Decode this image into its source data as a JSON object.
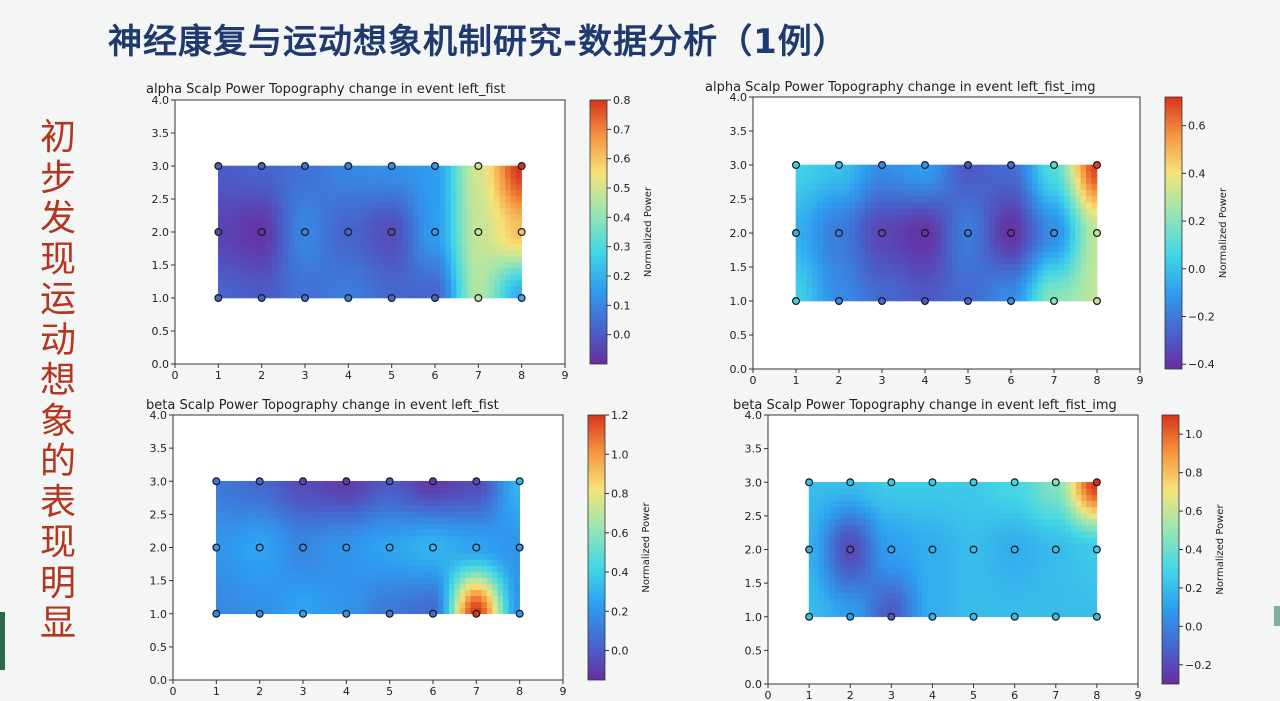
{
  "slide": {
    "title": "神经康复与运动想象机制研究-数据分析（1例）",
    "side_text": [
      "初",
      "步",
      "发",
      "现",
      "运",
      "动",
      "想",
      "象",
      "的",
      "表",
      "现",
      "明",
      "显"
    ]
  },
  "chart_data": [
    {
      "type": "heatmap",
      "title": "alpha Scalp Power Topography change in event left_fist",
      "xlim": [
        0,
        9
      ],
      "ylim": [
        0,
        4
      ],
      "xticks": [
        0,
        1,
        2,
        3,
        4,
        5,
        6,
        7,
        8,
        9
      ],
      "yticks": [
        0.0,
        0.5,
        1.0,
        1.5,
        2.0,
        2.5,
        3.0,
        3.5,
        4.0
      ],
      "electrodes_x": [
        1,
        2,
        3,
        4,
        5,
        6,
        7,
        8
      ],
      "electrodes_y": [
        1,
        2,
        3
      ],
      "values": [
        [
          0.02,
          0.0,
          0.05,
          0.08,
          0.03,
          0.02,
          0.45,
          0.18
        ],
        [
          -0.05,
          -0.08,
          0.1,
          0.02,
          -0.03,
          0.15,
          0.48,
          0.6
        ],
        [
          0.0,
          0.02,
          0.05,
          0.1,
          0.12,
          0.15,
          0.5,
          0.8
        ]
      ],
      "colorbar": {
        "label": "Normalized Power",
        "min": -0.1,
        "max": 0.8,
        "ticks": [
          0.0,
          0.1,
          0.2,
          0.3,
          0.4,
          0.5,
          0.6,
          0.7,
          0.8
        ]
      }
    },
    {
      "type": "heatmap",
      "title": "alpha Scalp Power Topography change in event left_fist_img",
      "xlim": [
        0,
        9
      ],
      "ylim": [
        0,
        4
      ],
      "xticks": [
        0,
        1,
        2,
        3,
        4,
        5,
        6,
        7,
        8,
        9
      ],
      "yticks": [
        0.0,
        0.5,
        1.0,
        1.5,
        2.0,
        2.5,
        3.0,
        3.5,
        4.0
      ],
      "electrodes_x": [
        1,
        2,
        3,
        4,
        5,
        6,
        7,
        8
      ],
      "electrodes_y": [
        1,
        2,
        3
      ],
      "values": [
        [
          0.05,
          -0.15,
          -0.25,
          -0.3,
          -0.25,
          -0.15,
          0.2,
          0.3
        ],
        [
          -0.05,
          -0.2,
          -0.35,
          -0.4,
          -0.2,
          -0.4,
          -0.15,
          0.3
        ],
        [
          0.05,
          0.0,
          -0.15,
          -0.1,
          -0.3,
          -0.25,
          0.1,
          0.7
        ]
      ],
      "colorbar": {
        "label": "Normalized Power",
        "min": -0.42,
        "max": 0.72,
        "ticks": [
          -0.4,
          -0.2,
          0.0,
          0.2,
          0.4,
          0.6
        ]
      }
    },
    {
      "type": "heatmap",
      "title": "beta Scalp Power Topography change in event left_fist",
      "xlim": [
        0,
        9
      ],
      "ylim": [
        0,
        4
      ],
      "xticks": [
        0,
        1,
        2,
        3,
        4,
        5,
        6,
        7,
        8,
        9
      ],
      "yticks": [
        0.0,
        0.5,
        1.0,
        1.5,
        2.0,
        2.5,
        3.0,
        3.5,
        4.0
      ],
      "electrodes_x": [
        1,
        2,
        3,
        4,
        5,
        6,
        7,
        8
      ],
      "electrodes_y": [
        1,
        2,
        3
      ],
      "values": [
        [
          0.15,
          0.18,
          0.25,
          0.2,
          0.1,
          0.05,
          1.2,
          0.2
        ],
        [
          0.2,
          0.25,
          0.15,
          0.2,
          0.25,
          0.3,
          0.25,
          0.2
        ],
        [
          0.1,
          0.05,
          -0.05,
          -0.1,
          0.0,
          -0.1,
          -0.05,
          0.3
        ]
      ],
      "colorbar": {
        "label": "Normalized Power",
        "min": -0.15,
        "max": 1.2,
        "ticks": [
          0.0,
          0.2,
          0.4,
          0.6,
          0.8,
          1.0,
          1.2
        ]
      }
    },
    {
      "type": "heatmap",
      "title": "beta Scalp Power Topography change in event left_fist_img",
      "xlim": [
        0,
        9
      ],
      "ylim": [
        0,
        4
      ],
      "xticks": [
        0,
        1,
        2,
        3,
        4,
        5,
        6,
        7,
        8,
        9
      ],
      "yticks": [
        0.0,
        0.5,
        1.0,
        1.5,
        2.0,
        2.5,
        3.0,
        3.5,
        4.0
      ],
      "electrodes_x": [
        1,
        2,
        3,
        4,
        5,
        6,
        7,
        8
      ],
      "electrodes_y": [
        1,
        2,
        3
      ],
      "values": [
        [
          0.2,
          0.1,
          -0.15,
          0.15,
          0.2,
          0.2,
          0.2,
          0.2
        ],
        [
          0.15,
          -0.2,
          0.1,
          0.15,
          0.2,
          0.15,
          0.2,
          0.25
        ],
        [
          0.2,
          0.2,
          0.25,
          0.25,
          0.25,
          0.3,
          0.45,
          1.1
        ]
      ],
      "colorbar": {
        "label": "Normalized Power",
        "min": -0.3,
        "max": 1.1,
        "ticks": [
          -0.2,
          0.0,
          0.2,
          0.4,
          0.6,
          0.8,
          1.0
        ]
      }
    }
  ]
}
